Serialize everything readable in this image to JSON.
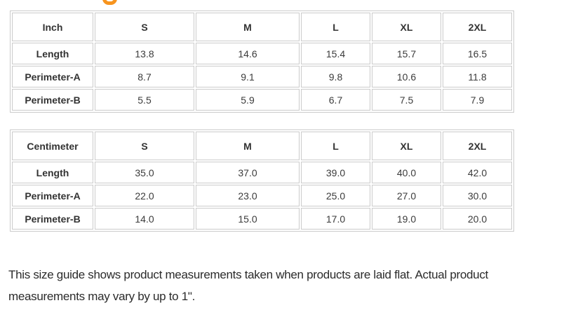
{
  "heading_fragment": {
    "icon": "clipped-orange-letter-descender",
    "color": "#F7941E"
  },
  "tables": [
    {
      "unit": "Inch",
      "sizes": [
        "S",
        "M",
        "L",
        "XL",
        "2XL"
      ],
      "rows": [
        {
          "label": "Length",
          "values": [
            "13.8",
            "14.6",
            "15.4",
            "15.7",
            "16.5"
          ]
        },
        {
          "label": "Perimeter-A",
          "values": [
            "8.7",
            "9.1",
            "9.8",
            "10.6",
            "11.8"
          ]
        },
        {
          "label": "Perimeter-B",
          "values": [
            "5.5",
            "5.9",
            "6.7",
            "7.5",
            "7.9"
          ]
        }
      ]
    },
    {
      "unit": "Centimeter",
      "sizes": [
        "S",
        "M",
        "L",
        "XL",
        "2XL"
      ],
      "rows": [
        {
          "label": "Length",
          "values": [
            "35.0",
            "37.0",
            "39.0",
            "40.0",
            "42.0"
          ]
        },
        {
          "label": "Perimeter-A",
          "values": [
            "22.0",
            "23.0",
            "25.0",
            "27.0",
            "30.0"
          ]
        },
        {
          "label": "Perimeter-B",
          "values": [
            "14.0",
            "15.0",
            "17.0",
            "19.0",
            "20.0"
          ]
        }
      ]
    }
  ],
  "footer": {
    "note": "This size guide shows product measurements taken when products are laid flat. Actual product measurements may vary by up to 1\"."
  },
  "colors": {
    "table_border": "#cbcbcb",
    "accent_orange": "#F7941E",
    "text": "#3b3b3b"
  }
}
